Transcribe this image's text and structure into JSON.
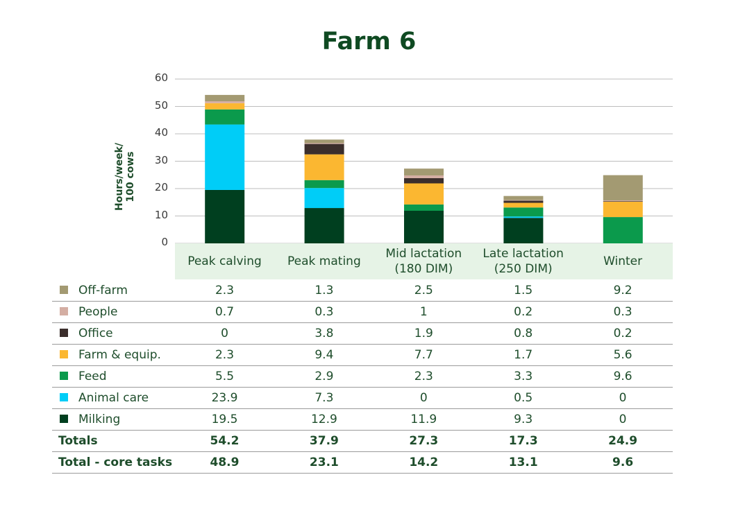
{
  "chart_data": {
    "type": "bar",
    "stacked": true,
    "title": "Farm 6",
    "ylabel": "Hours/week/\n100 cows",
    "ylim": [
      0,
      60
    ],
    "yticks": [
      0,
      10,
      20,
      30,
      40,
      50,
      60
    ],
    "grid": true,
    "categories": [
      "Peak calving",
      "Peak mating",
      "Mid lactation\n(180 DIM)",
      "Late lactation\n(250 DIM)",
      "Winter"
    ],
    "series": [
      {
        "name": "Off-farm",
        "color": "#a39a72",
        "values": [
          "2.3",
          "1.3",
          "2.5",
          "1.5",
          "9.2"
        ]
      },
      {
        "name": "People",
        "color": "#d4aea3",
        "values": [
          "0.7",
          "0.3",
          "1",
          "0.2",
          "0.3"
        ]
      },
      {
        "name": "Office",
        "color": "#3b2e2c",
        "values": [
          "0",
          "3.8",
          "1.9",
          "0.8",
          "0.2"
        ]
      },
      {
        "name": "Farm & equip.",
        "color": "#fbb731",
        "values": [
          "2.3",
          "9.4",
          "7.7",
          "1.7",
          "5.6"
        ]
      },
      {
        "name": "Feed",
        "color": "#0b9a4c",
        "values": [
          "5.5",
          "2.9",
          "2.3",
          "3.3",
          "9.6"
        ]
      },
      {
        "name": "Animal care",
        "color": "#00cdf7",
        "values": [
          "23.9",
          "7.3",
          "0",
          "0.5",
          "0"
        ]
      },
      {
        "name": "Milking",
        "color": "#003f1f",
        "values": [
          "19.5",
          "12.9",
          "11.9",
          "9.3",
          "0"
        ]
      }
    ],
    "totals": {
      "label": "Totals",
      "values": [
        "54.2",
        "37.9",
        "27.3",
        "17.3",
        "24.9"
      ]
    },
    "core_totals": {
      "label": "Total - core tasks",
      "values": [
        "48.9",
        "23.1",
        "14.2",
        "13.1",
        "9.6"
      ]
    }
  }
}
